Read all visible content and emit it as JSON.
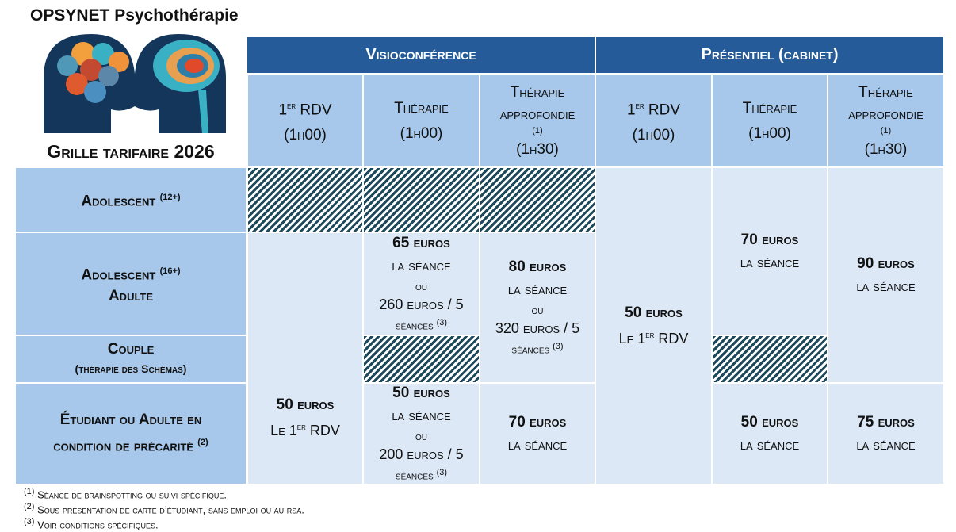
{
  "brand": "OPSYNET Psychothérapie",
  "subtitle": "Grille tarifaire 2026",
  "groups": [
    "Visioconférence",
    "Présentiel (cabinet)"
  ],
  "columns": [
    {
      "l1": "1",
      "sup": "er",
      "l1b": " RDV",
      "l2": "(1h00)"
    },
    {
      "l1": "Thérapie",
      "l2": "(1h00)"
    },
    {
      "l1": "Thérapie approfondie",
      "sup": "(1)",
      "l2": "(1h30)"
    },
    {
      "l1": "1",
      "sup": "er",
      "l1b": " RDV",
      "l2": "(1h00)"
    },
    {
      "l1": "Thérapie",
      "l2": "(1h00)"
    },
    {
      "l1": "Thérapie approfondie",
      "sup": "(1)",
      "l2": "(1h30)"
    }
  ],
  "rows": [
    {
      "l1": "Adolescent",
      "sup": "(12+)"
    },
    {
      "l1": "Adolescent",
      "sup": "(16+)",
      "l2": "Adulte"
    },
    {
      "l1": "Couple",
      "l2": "(thérapie des Schémas)"
    },
    {
      "l1": "Étudiant ou Adulte en",
      "l2": "condition de précarité",
      "sup": "(2)"
    }
  ],
  "prices": {
    "v_rdv": {
      "price": "50 euros",
      "le": "Le 1",
      "sup": "er",
      "rdv": " RDV"
    },
    "v_th_adult": {
      "price": "65 euros",
      "per": "la séance",
      "ou": "ou",
      "pack": "260 euros / 5",
      "pack2": "séances",
      "sup": "(3)"
    },
    "v_th_etud": {
      "price": "50 euros",
      "per": "la séance",
      "ou": "ou",
      "pack": "200 euros / 5",
      "pack2": "séances",
      "sup": "(3)"
    },
    "v_ap_adult": {
      "price": "80 euros",
      "per": "la séance",
      "ou": "ou",
      "pack": "320 euros / 5",
      "pack2": "séances",
      "sup": "(3)"
    },
    "v_ap_etud": {
      "price": "70 euros",
      "per": "la séance"
    },
    "p_rdv": {
      "price": "50 euros",
      "le": "Le 1",
      "sup": "er",
      "rdv": " RDV"
    },
    "p_th_adult": {
      "price": "70 euros",
      "per": "la séance"
    },
    "p_th_etud": {
      "price": "50 euros",
      "per": "la séance"
    },
    "p_ap_adult": {
      "price": "90 euros",
      "per": "la séance"
    },
    "p_ap_etud": {
      "price": "75 euros",
      "per": "la séance"
    }
  },
  "footnotes": [
    {
      "n": "(1)",
      "t": "Séance de brainspotting ou suivi spécifique."
    },
    {
      "n": "(2)",
      "t": "Sous présentation de carte d’étudiant, sans emploi ou au rsa."
    },
    {
      "n": "(3)",
      "t": "Voir conditions spécifiques."
    }
  ],
  "colors": {
    "header": "#245b98",
    "light": "#a7c8ea",
    "cell": "#dce8f5",
    "hatch": "#1c4a5c"
  }
}
